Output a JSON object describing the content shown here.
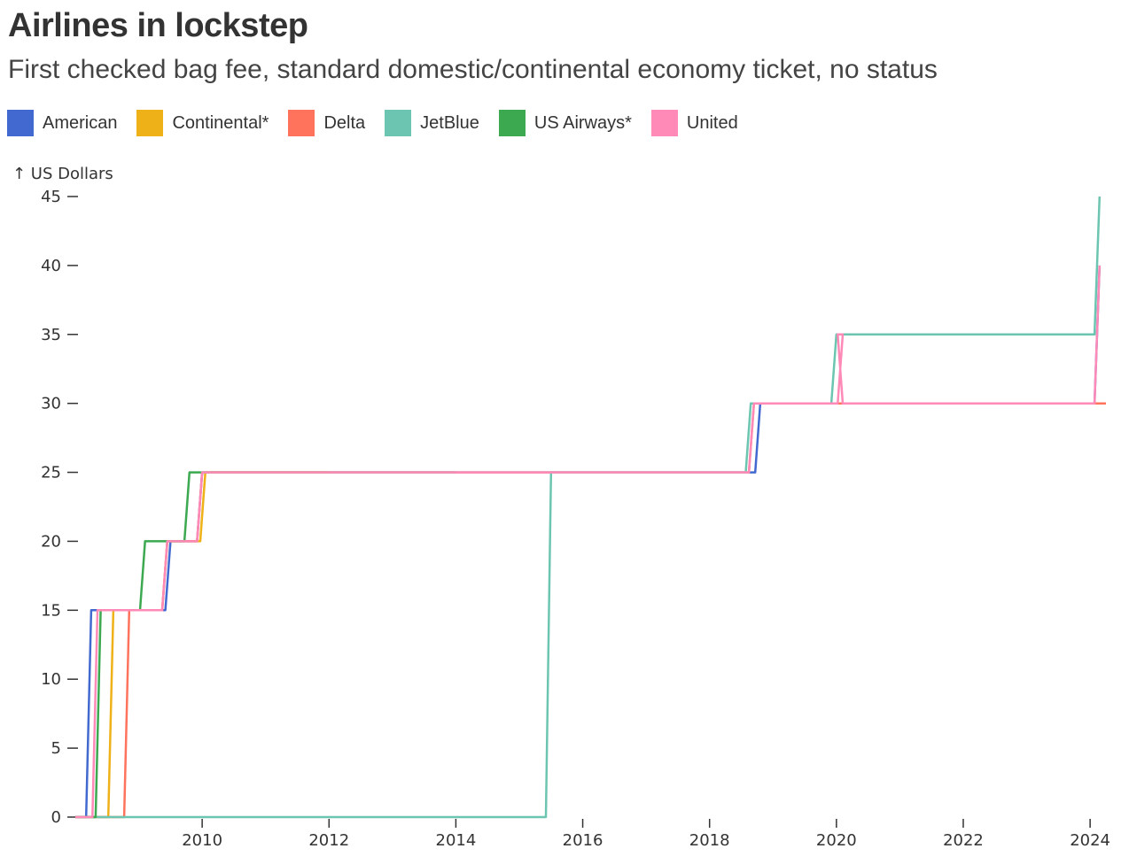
{
  "title": "Airlines in lockstep",
  "subtitle": "First checked bag fee, standard domestic/continental economy ticket, no status",
  "chart_data": {
    "type": "line",
    "curve": "step-after",
    "ylabel": "↑ US Dollars",
    "xlabel": "",
    "xlim": [
      2008.0,
      2024.25
    ],
    "ylim": [
      0,
      45
    ],
    "x_ticks": [
      2010,
      2012,
      2014,
      2016,
      2018,
      2020,
      2022,
      2024
    ],
    "y_ticks": [
      0,
      5,
      10,
      15,
      20,
      25,
      30,
      35,
      40,
      45
    ],
    "grid": false,
    "legend": "top-left",
    "series": [
      {
        "name": "American",
        "color": "#4269d0",
        "points": [
          [
            2008.0,
            0
          ],
          [
            2008.25,
            15
          ],
          [
            2009.5,
            20
          ],
          [
            2010.0,
            25
          ],
          [
            2018.8,
            30
          ],
          [
            2024.15,
            40
          ]
        ]
      },
      {
        "name": "Continental*",
        "color": "#efb118",
        "points": [
          [
            2008.0,
            0
          ],
          [
            2008.6,
            15
          ],
          [
            2009.45,
            20
          ],
          [
            2010.05,
            25
          ],
          [
            2012.0,
            25
          ]
        ]
      },
      {
        "name": "Delta",
        "color": "#ff725c",
        "points": [
          [
            2008.0,
            0
          ],
          [
            2008.85,
            15
          ],
          [
            2009.45,
            20
          ],
          [
            2010.0,
            25
          ],
          [
            2018.7,
            30
          ],
          [
            2024.25,
            30
          ]
        ]
      },
      {
        "name": "JetBlue",
        "color": "#6cc5b0",
        "points": [
          [
            2008.0,
            0
          ],
          [
            2015.5,
            25
          ],
          [
            2018.65,
            30
          ],
          [
            2020.0,
            35
          ],
          [
            2024.15,
            45
          ]
        ]
      },
      {
        "name": "US Airways*",
        "color": "#3ca951",
        "points": [
          [
            2008.0,
            0
          ],
          [
            2008.4,
            15
          ],
          [
            2009.1,
            20
          ],
          [
            2009.8,
            25
          ],
          [
            2014.0,
            25
          ]
        ]
      },
      {
        "name": "United",
        "color": "#ff8ab7",
        "points": [
          [
            2008.0,
            0
          ],
          [
            2008.35,
            15
          ],
          [
            2009.45,
            20
          ],
          [
            2010.0,
            25
          ],
          [
            2018.7,
            30
          ],
          [
            2020.1,
            35
          ],
          [
            2020.1,
            30
          ],
          [
            2024.15,
            40
          ]
        ]
      }
    ]
  }
}
